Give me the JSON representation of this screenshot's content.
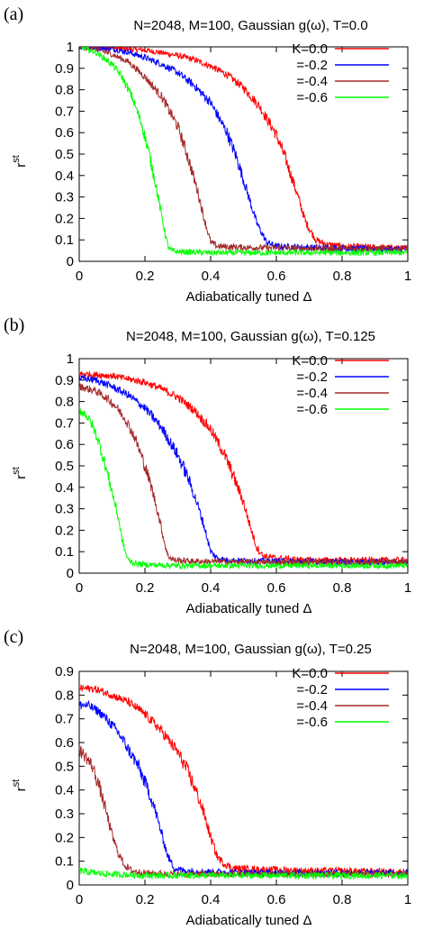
{
  "chart_data": [
    {
      "type": "line",
      "panel": "(a)",
      "title": "N=2048, M=100, Gaussian g(ω), T=0.0",
      "xlabel": "Adiabatically tuned  Δ",
      "ylabel": "r",
      "ylabel_sup": "st",
      "xlim": [
        0,
        1
      ],
      "ylim": [
        0,
        1
      ],
      "xticks": [
        "0",
        "0.2",
        "0.4",
        "0.6",
        "0.8",
        "1"
      ],
      "yticks": [
        "0",
        "0.1",
        "0.2",
        "0.3",
        "0.4",
        "0.5",
        "0.6",
        "0.7",
        "0.8",
        "0.9",
        "1"
      ],
      "legend_position": "top-right",
      "series": [
        {
          "name": "K=0.0",
          "color": "#ff0000",
          "x": [
            0,
            0.1,
            0.2,
            0.3,
            0.35,
            0.4,
            0.45,
            0.5,
            0.55,
            0.6,
            0.63,
            0.66,
            0.69,
            0.72,
            0.75,
            0.8,
            0.9,
            1.0
          ],
          "y": [
            1.0,
            0.995,
            0.985,
            0.96,
            0.94,
            0.91,
            0.87,
            0.81,
            0.72,
            0.59,
            0.47,
            0.33,
            0.18,
            0.1,
            0.08,
            0.07,
            0.065,
            0.06
          ]
        },
        {
          "name": "=-0.2",
          "color": "#0000ff",
          "x": [
            0,
            0.1,
            0.15,
            0.2,
            0.25,
            0.3,
            0.35,
            0.4,
            0.45,
            0.48,
            0.51,
            0.54,
            0.57,
            0.6,
            0.7,
            0.8,
            1.0
          ],
          "y": [
            1.0,
            0.99,
            0.975,
            0.95,
            0.92,
            0.88,
            0.82,
            0.74,
            0.6,
            0.48,
            0.33,
            0.18,
            0.09,
            0.07,
            0.065,
            0.06,
            0.055
          ]
        },
        {
          "name": "=-0.4",
          "color": "#a52a2a",
          "x": [
            0,
            0.05,
            0.1,
            0.15,
            0.2,
            0.25,
            0.3,
            0.33,
            0.36,
            0.38,
            0.4,
            0.42,
            0.5,
            0.7,
            1.0
          ],
          "y": [
            1.0,
            0.99,
            0.965,
            0.93,
            0.86,
            0.77,
            0.63,
            0.49,
            0.33,
            0.2,
            0.09,
            0.07,
            0.065,
            0.06,
            0.06
          ]
        },
        {
          "name": "=-0.6",
          "color": "#00ff00",
          "x": [
            0,
            0.05,
            0.1,
            0.13,
            0.16,
            0.19,
            0.21,
            0.23,
            0.25,
            0.26,
            0.27,
            0.28,
            0.3,
            0.4,
            0.6,
            1.0
          ],
          "y": [
            1.0,
            0.975,
            0.92,
            0.86,
            0.77,
            0.64,
            0.52,
            0.38,
            0.22,
            0.14,
            0.07,
            0.05,
            0.045,
            0.04,
            0.04,
            0.04
          ]
        }
      ]
    },
    {
      "type": "line",
      "panel": "(b)",
      "title": "N=2048, M=100, Gaussian g(ω), T=0.125",
      "xlabel": "Adiabatically tuned  Δ",
      "ylabel": "r",
      "ylabel_sup": "st",
      "xlim": [
        0,
        1
      ],
      "ylim": [
        0,
        1
      ],
      "xticks": [
        "0",
        "0.2",
        "0.4",
        "0.6",
        "0.8",
        "1"
      ],
      "yticks": [
        "0",
        "0.1",
        "0.2",
        "0.3",
        "0.4",
        "0.5",
        "0.6",
        "0.7",
        "0.8",
        "0.9",
        "1"
      ],
      "legend_position": "top-right",
      "series": [
        {
          "name": "K=0.0",
          "color": "#ff0000",
          "x": [
            0,
            0.1,
            0.2,
            0.25,
            0.3,
            0.35,
            0.4,
            0.44,
            0.47,
            0.5,
            0.52,
            0.54,
            0.56,
            0.6,
            0.7,
            1.0
          ],
          "y": [
            0.93,
            0.92,
            0.89,
            0.86,
            0.82,
            0.76,
            0.67,
            0.56,
            0.45,
            0.33,
            0.22,
            0.12,
            0.08,
            0.07,
            0.06,
            0.06
          ]
        },
        {
          "name": "=-0.2",
          "color": "#0000ff",
          "x": [
            0,
            0.05,
            0.1,
            0.15,
            0.2,
            0.25,
            0.3,
            0.33,
            0.36,
            0.38,
            0.4,
            0.42,
            0.45,
            0.6,
            1.0
          ],
          "y": [
            0.91,
            0.9,
            0.87,
            0.83,
            0.77,
            0.68,
            0.55,
            0.45,
            0.32,
            0.22,
            0.1,
            0.07,
            0.06,
            0.055,
            0.05
          ]
        },
        {
          "name": "=-0.4",
          "color": "#a52a2a",
          "x": [
            0,
            0.05,
            0.08,
            0.11,
            0.14,
            0.17,
            0.2,
            0.22,
            0.24,
            0.26,
            0.27,
            0.29,
            0.35,
            0.6,
            1.0
          ],
          "y": [
            0.87,
            0.85,
            0.82,
            0.78,
            0.72,
            0.63,
            0.5,
            0.4,
            0.28,
            0.14,
            0.08,
            0.06,
            0.055,
            0.05,
            0.05
          ]
        },
        {
          "name": "=-0.6",
          "color": "#00ff00",
          "x": [
            0,
            0.02,
            0.04,
            0.06,
            0.08,
            0.1,
            0.12,
            0.13,
            0.14,
            0.15,
            0.17,
            0.2,
            0.3,
            0.6,
            1.0
          ],
          "y": [
            0.76,
            0.74,
            0.69,
            0.61,
            0.5,
            0.38,
            0.25,
            0.16,
            0.1,
            0.06,
            0.045,
            0.04,
            0.035,
            0.035,
            0.035
          ]
        }
      ]
    },
    {
      "type": "line",
      "panel": "(c)",
      "title": "N=2048, M=100, Gaussian g(ω), T=0.25",
      "xlabel": "Adiabatically tuned  Δ",
      "ylabel": "r",
      "ylabel_sup": "st",
      "xlim": [
        0,
        1
      ],
      "ylim": [
        0,
        0.9
      ],
      "xticks": [
        "0",
        "0.2",
        "0.4",
        "0.6",
        "0.8",
        "1"
      ],
      "yticks": [
        "0",
        "0.1",
        "0.2",
        "0.3",
        "0.4",
        "0.5",
        "0.6",
        "0.7",
        "0.8",
        "0.9"
      ],
      "legend_position": "top-right",
      "series": [
        {
          "name": "K=0.0",
          "color": "#ff0000",
          "x": [
            0,
            0.05,
            0.1,
            0.15,
            0.2,
            0.25,
            0.3,
            0.33,
            0.36,
            0.38,
            0.4,
            0.42,
            0.44,
            0.47,
            0.55,
            0.7,
            1.0
          ],
          "y": [
            0.83,
            0.825,
            0.8,
            0.77,
            0.72,
            0.65,
            0.56,
            0.48,
            0.38,
            0.3,
            0.2,
            0.12,
            0.09,
            0.07,
            0.065,
            0.06,
            0.055
          ]
        },
        {
          "name": "=-0.2",
          "color": "#0000ff",
          "x": [
            0,
            0.03,
            0.06,
            0.09,
            0.12,
            0.15,
            0.18,
            0.21,
            0.23,
            0.25,
            0.27,
            0.29,
            0.32,
            0.4,
            0.6,
            1.0
          ],
          "y": [
            0.76,
            0.755,
            0.73,
            0.69,
            0.64,
            0.57,
            0.5,
            0.4,
            0.32,
            0.22,
            0.12,
            0.07,
            0.06,
            0.055,
            0.05,
            0.05
          ]
        },
        {
          "name": "=-0.4",
          "color": "#a52a2a",
          "x": [
            0,
            0.02,
            0.04,
            0.06,
            0.08,
            0.1,
            0.12,
            0.14,
            0.16,
            0.2,
            0.3,
            0.6,
            1.0
          ],
          "y": [
            0.57,
            0.54,
            0.5,
            0.42,
            0.32,
            0.21,
            0.13,
            0.08,
            0.06,
            0.05,
            0.045,
            0.045,
            0.045
          ]
        },
        {
          "name": "=-0.6",
          "color": "#00ff00",
          "x": [
            0,
            0.05,
            0.1,
            0.2,
            0.3,
            0.4,
            0.5,
            0.6,
            0.7,
            0.8,
            0.9,
            1.0
          ],
          "y": [
            0.06,
            0.05,
            0.045,
            0.04,
            0.04,
            0.04,
            0.04,
            0.04,
            0.04,
            0.04,
            0.04,
            0.04
          ]
        }
      ]
    }
  ]
}
